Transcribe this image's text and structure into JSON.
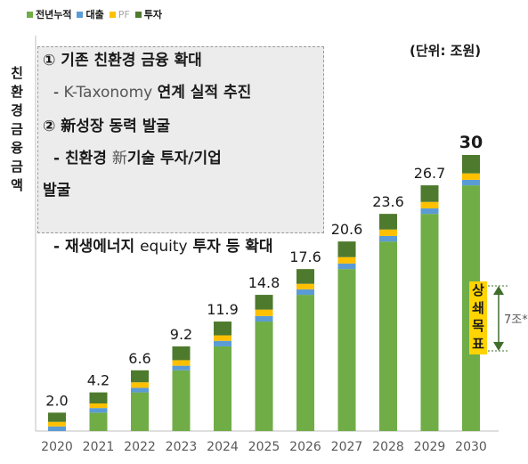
{
  "legend": {
    "cumulative": "전년누적",
    "loan": "대출",
    "pf": "PF",
    "investment": "투자"
  },
  "unit_label": "(단위: 조원)",
  "y_axis_label": "친환경금융금액",
  "box": {
    "line1": "① 기존 친환경 금융 확대",
    "line2_prefix": "- ",
    "line2_light": "K-Taxonomy ",
    "line2_bold": "연계 실적 추진",
    "line3": "② 新성장 동력 발굴",
    "line4_prefix": "- 친환경 ",
    "line4_light": "新",
    "line4_bold": "기술 투자/기업",
    "line5": "발굴",
    "line6_prefix": "- 재생에너지 ",
    "line6_light": "equity",
    "line6_bold": " 투자 등 확대"
  },
  "callout": {
    "text": "상쇄목표",
    "gap": "7조*"
  },
  "colors": {
    "cumulative": "#70ad47",
    "loan": "#5b9bd5",
    "pf": "#ffc000",
    "investment": "#4e7a2e",
    "callout_bg": "#ffd400",
    "arrow": "#3f6f2a"
  },
  "chart_data": {
    "type": "bar",
    "stacked": true,
    "categories": [
      "2020",
      "2021",
      "2022",
      "2023",
      "2024",
      "2025",
      "2026",
      "2027",
      "2028",
      "2029",
      "2030"
    ],
    "totals": [
      2.0,
      4.2,
      6.6,
      9.2,
      11.9,
      14.8,
      17.6,
      20.6,
      23.6,
      26.7,
      30
    ],
    "total_labels": [
      "2.0",
      "4.2",
      "6.6",
      "9.2",
      "11.9",
      "14.8",
      "17.6",
      "20.6",
      "23.6",
      "26.7",
      "30"
    ],
    "series": [
      {
        "name": "전년누적",
        "values": [
          0,
          2.0,
          4.2,
          6.6,
          9.2,
          11.9,
          14.8,
          17.6,
          20.6,
          23.6,
          26.7
        ]
      },
      {
        "name": "대출",
        "values": [
          0.5,
          0.5,
          0.5,
          0.5,
          0.6,
          0.6,
          0.6,
          0.6,
          0.6,
          0.6,
          0.6
        ]
      },
      {
        "name": "PF",
        "values": [
          0.5,
          0.5,
          0.6,
          0.6,
          0.6,
          0.7,
          0.6,
          0.7,
          0.7,
          0.7,
          0.7
        ]
      },
      {
        "name": "투자",
        "values": [
          1.0,
          1.2,
          1.3,
          1.5,
          1.5,
          1.6,
          1.6,
          1.7,
          1.7,
          1.8,
          2.0
        ]
      }
    ],
    "ylim": [
      0,
      30
    ],
    "grid": false,
    "legend_position": "top-left"
  }
}
